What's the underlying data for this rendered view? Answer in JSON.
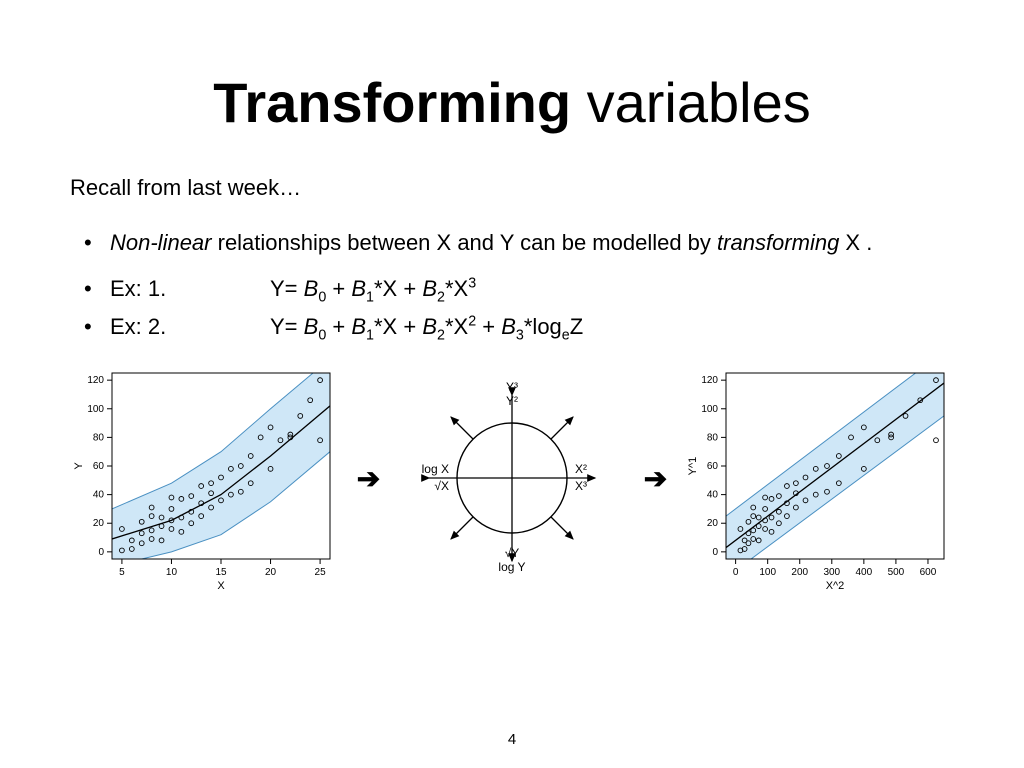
{
  "title": {
    "bold": "Transforming",
    "rest": " variables"
  },
  "recall": "Recall from last week…",
  "bullet_main": {
    "prefix_italic": "Non-linear",
    "middle": " relationships between X and Y can be modelled by ",
    "suffix_italic": "transforming",
    "tail": " X ."
  },
  "examples": {
    "ex1_label": "Ex: 1.",
    "ex2_label": "Ex: 2.",
    "eq1": "Y= B₀ + B₁*X + B₂*X³",
    "eq2": "Y= B₀ + B₁*X + B₂*X² + B₃*logₑZ"
  },
  "page_number": "4",
  "colors": {
    "band_fill": "#cfe7f7",
    "band_stroke": "#4a90c2",
    "point_stroke": "#000000",
    "axis_color": "#000000",
    "curve_color": "#000000"
  },
  "scatter_left": {
    "xlabel": "X",
    "ylabel": "Y",
    "xlim": [
      4,
      26
    ],
    "ylim": [
      -5,
      125
    ],
    "xticks": [
      5,
      10,
      15,
      20,
      25
    ],
    "yticks": [
      0,
      20,
      40,
      60,
      80,
      100,
      120
    ],
    "band_upper": [
      [
        4,
        30
      ],
      [
        10,
        48
      ],
      [
        15,
        70
      ],
      [
        20,
        100
      ],
      [
        26,
        135
      ]
    ],
    "band_lower": [
      [
        4,
        -10
      ],
      [
        10,
        0
      ],
      [
        15,
        12
      ],
      [
        20,
        35
      ],
      [
        26,
        70
      ]
    ],
    "curve": [
      [
        4,
        9
      ],
      [
        10,
        22
      ],
      [
        15,
        40
      ],
      [
        20,
        67
      ],
      [
        26,
        102
      ]
    ],
    "points": [
      [
        5,
        1
      ],
      [
        5,
        16
      ],
      [
        6,
        2
      ],
      [
        6,
        8
      ],
      [
        7,
        6
      ],
      [
        7,
        13
      ],
      [
        7,
        21
      ],
      [
        8,
        9
      ],
      [
        8,
        15
      ],
      [
        8,
        25
      ],
      [
        8,
        31
      ],
      [
        9,
        8
      ],
      [
        9,
        18
      ],
      [
        9,
        24
      ],
      [
        10,
        16
      ],
      [
        10,
        22
      ],
      [
        10,
        30
      ],
      [
        10,
        38
      ],
      [
        11,
        14
      ],
      [
        11,
        24
      ],
      [
        11,
        37
      ],
      [
        12,
        20
      ],
      [
        12,
        28
      ],
      [
        12,
        39
      ],
      [
        13,
        25
      ],
      [
        13,
        34
      ],
      [
        13,
        46
      ],
      [
        14,
        31
      ],
      [
        14,
        41
      ],
      [
        14,
        48
      ],
      [
        15,
        36
      ],
      [
        15,
        52
      ],
      [
        16,
        40
      ],
      [
        16,
        58
      ],
      [
        17,
        42
      ],
      [
        17,
        60
      ],
      [
        18,
        48
      ],
      [
        18,
        67
      ],
      [
        19,
        80
      ],
      [
        20,
        58
      ],
      [
        20,
        87
      ],
      [
        21,
        78
      ],
      [
        22,
        80
      ],
      [
        22,
        82
      ],
      [
        23,
        95
      ],
      [
        24,
        106
      ],
      [
        25,
        78
      ],
      [
        25,
        120
      ]
    ]
  },
  "scatter_right": {
    "xlabel": "X^2",
    "ylabel": "Y^1",
    "xlim": [
      -30,
      650
    ],
    "ylim": [
      -5,
      125
    ],
    "xticks": [
      0,
      100,
      200,
      300,
      400,
      500,
      600
    ],
    "yticks": [
      0,
      20,
      40,
      60,
      80,
      100,
      120
    ],
    "band_upper": [
      [
        -30,
        25
      ],
      [
        650,
        140
      ]
    ],
    "band_lower": [
      [
        -30,
        -18
      ],
      [
        650,
        95
      ]
    ],
    "curve": [
      [
        -30,
        3
      ],
      [
        650,
        118
      ]
    ],
    "points": [
      [
        15,
        1
      ],
      [
        15,
        16
      ],
      [
        28,
        2
      ],
      [
        28,
        8
      ],
      [
        40,
        6
      ],
      [
        40,
        13
      ],
      [
        40,
        21
      ],
      [
        55,
        9
      ],
      [
        55,
        15
      ],
      [
        55,
        25
      ],
      [
        55,
        31
      ],
      [
        72,
        8
      ],
      [
        72,
        18
      ],
      [
        72,
        24
      ],
      [
        92,
        16
      ],
      [
        92,
        22
      ],
      [
        92,
        30
      ],
      [
        92,
        38
      ],
      [
        112,
        14
      ],
      [
        112,
        24
      ],
      [
        112,
        37
      ],
      [
        135,
        20
      ],
      [
        135,
        28
      ],
      [
        135,
        39
      ],
      [
        160,
        25
      ],
      [
        160,
        34
      ],
      [
        160,
        46
      ],
      [
        188,
        31
      ],
      [
        188,
        41
      ],
      [
        188,
        48
      ],
      [
        218,
        36
      ],
      [
        218,
        52
      ],
      [
        250,
        40
      ],
      [
        250,
        58
      ],
      [
        285,
        42
      ],
      [
        285,
        60
      ],
      [
        322,
        48
      ],
      [
        322,
        67
      ],
      [
        360,
        80
      ],
      [
        400,
        58
      ],
      [
        400,
        87
      ],
      [
        442,
        78
      ],
      [
        485,
        80
      ],
      [
        485,
        82
      ],
      [
        530,
        95
      ],
      [
        576,
        106
      ],
      [
        625,
        78
      ],
      [
        625,
        120
      ]
    ]
  },
  "tukey": {
    "top1": "Y³",
    "top2": "Y²",
    "bottom1": "√Y",
    "bottom2": "log Y",
    "left1": "log X",
    "left2": "√X",
    "right1": "X²",
    "right2": "X³"
  }
}
